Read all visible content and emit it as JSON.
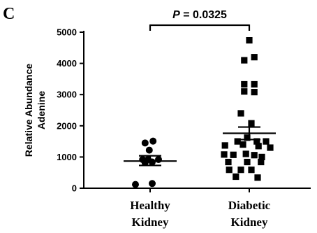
{
  "chart_data": {
    "type": "scatter",
    "panel_label": "C",
    "ylabel_lines": [
      "Relative Abundance",
      "Adenine"
    ],
    "ylim": [
      0,
      5000
    ],
    "yticks": [
      0,
      1000,
      2000,
      3000,
      4000,
      5000
    ],
    "categories": [
      {
        "label_lines": [
          "Healthy",
          "Kidney"
        ]
      },
      {
        "label_lines": [
          "Diabetic",
          "Kidney"
        ]
      }
    ],
    "series": [
      {
        "marker": "circle",
        "category_index": 0,
        "mean": 870,
        "sem_low": 730,
        "sem_high": 1040,
        "points": [
          {
            "offset": -0.12,
            "y": 1450
          },
          {
            "offset": 0.07,
            "y": 1510
          },
          {
            "offset": -0.02,
            "y": 1220
          },
          {
            "offset": -0.18,
            "y": 920
          },
          {
            "offset": -0.05,
            "y": 920
          },
          {
            "offset": 0.2,
            "y": 920
          },
          {
            "offset": -0.12,
            "y": 820
          },
          {
            "offset": 0.05,
            "y": 840
          },
          {
            "offset": -0.35,
            "y": 120
          },
          {
            "offset": 0.05,
            "y": 150
          }
        ]
      },
      {
        "marker": "square",
        "category_index": 1,
        "mean": 1760,
        "sem_low": 1560,
        "sem_high": 1960,
        "points": [
          {
            "offset": 0.0,
            "y": 4740
          },
          {
            "offset": 0.12,
            "y": 4200
          },
          {
            "offset": -0.12,
            "y": 4100
          },
          {
            "offset": -0.12,
            "y": 3330
          },
          {
            "offset": 0.12,
            "y": 3330
          },
          {
            "offset": -0.12,
            "y": 3100
          },
          {
            "offset": 0.12,
            "y": 3080
          },
          {
            "offset": -0.2,
            "y": 2400
          },
          {
            "offset": 0.05,
            "y": 2080
          },
          {
            "offset": -0.05,
            "y": 1620
          },
          {
            "offset": -0.28,
            "y": 1500
          },
          {
            "offset": 0.18,
            "y": 1500
          },
          {
            "offset": 0.4,
            "y": 1500
          },
          {
            "offset": -0.58,
            "y": 1370
          },
          {
            "offset": -0.15,
            "y": 1400
          },
          {
            "offset": 0.22,
            "y": 1350
          },
          {
            "offset": 0.5,
            "y": 1300
          },
          {
            "offset": -0.6,
            "y": 1080
          },
          {
            "offset": -0.38,
            "y": 1070
          },
          {
            "offset": -0.08,
            "y": 1100
          },
          {
            "offset": 0.12,
            "y": 1060
          },
          {
            "offset": 0.3,
            "y": 1000
          },
          {
            "offset": -0.5,
            "y": 840
          },
          {
            "offset": -0.05,
            "y": 840
          },
          {
            "offset": 0.28,
            "y": 840
          },
          {
            "offset": -0.48,
            "y": 590
          },
          {
            "offset": -0.2,
            "y": 590
          },
          {
            "offset": 0.05,
            "y": 590
          },
          {
            "offset": -0.32,
            "y": 370
          },
          {
            "offset": 0.2,
            "y": 340
          }
        ]
      }
    ],
    "significance": {
      "text": "P = 0.0325",
      "from": 0,
      "to": 1
    }
  }
}
